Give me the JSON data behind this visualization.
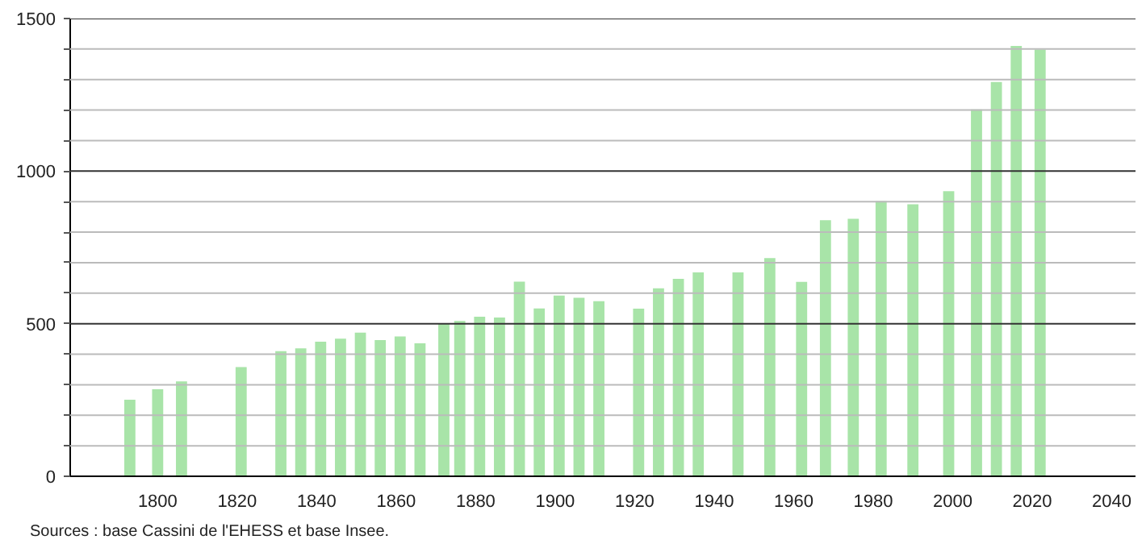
{
  "chart_data": {
    "type": "bar",
    "x": [
      1793,
      1800,
      1806,
      1821,
      1831,
      1836,
      1841,
      1846,
      1851,
      1856,
      1861,
      1866,
      1872,
      1876,
      1881,
      1886,
      1891,
      1896,
      1901,
      1906,
      1911,
      1921,
      1926,
      1931,
      1936,
      1946,
      1954,
      1962,
      1968,
      1975,
      1982,
      1990,
      1999,
      2006,
      2011,
      2016,
      2022
    ],
    "values": [
      251,
      285,
      311,
      358,
      410,
      419,
      441,
      451,
      471,
      446,
      458,
      436,
      502,
      509,
      523,
      520,
      638,
      550,
      592,
      585,
      574,
      549,
      616,
      647,
      668,
      668,
      715,
      637,
      839,
      844,
      902,
      891,
      934,
      1202,
      1292,
      1410,
      1398
    ],
    "color": "#a8e4a8",
    "xlim": [
      1778,
      2046
    ],
    "xticks": [
      1800,
      1820,
      1840,
      1860,
      1880,
      1900,
      1920,
      1940,
      1960,
      1980,
      2000,
      2020,
      2040
    ],
    "ylim": [
      0,
      1500
    ],
    "yticks": [
      0,
      {
        "value": 100,
        "label": null
      },
      {
        "value": 200,
        "label": null
      },
      {
        "value": 300,
        "label": null
      },
      {
        "value": 400,
        "label": null
      },
      500,
      {
        "value": 600,
        "label": null
      },
      {
        "value": 700,
        "label": null
      },
      {
        "value": 800,
        "label": null
      },
      {
        "value": 900,
        "label": null
      },
      1000,
      {
        "value": 1100,
        "label": null
      },
      {
        "value": 1200,
        "label": null
      },
      {
        "value": 1300,
        "label": null
      },
      {
        "value": 1400,
        "label": null
      },
      1500
    ],
    "grid": "y",
    "annotations": [
      "Sources : base Cassini de l'EHESS et base Insee."
    ]
  }
}
